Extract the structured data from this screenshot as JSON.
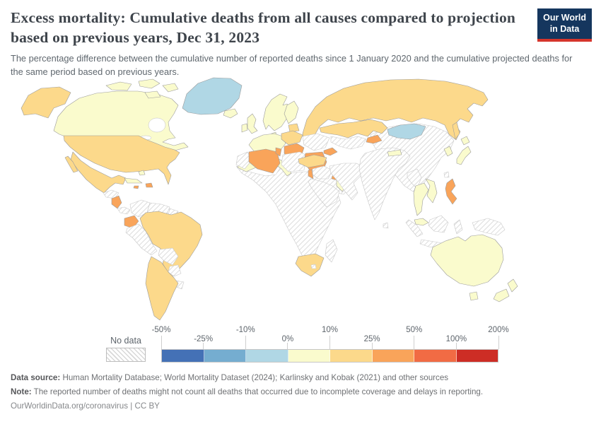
{
  "header": {
    "title": "Excess mortality: Cumulative deaths from all causes compared to projection based on previous years, Dec 31, 2023",
    "subtitle": "The percentage difference between the cumulative number of reported deaths since 1 January 2020 and the cumulative projected deaths for the same period based on previous years.",
    "logo": {
      "line1": "Our World",
      "line2": "in Data",
      "bg_color": "#15365e",
      "accent_color": "#d6352c"
    }
  },
  "chart_data": {
    "type": "choropleth_map",
    "title": "Excess mortality: Cumulative deaths from all causes compared to projection based on previous years",
    "date": "Dec 31, 2023",
    "unit": "%",
    "map_style": {
      "border": "#9c9c9c",
      "no_data_border": "#c9c9c9",
      "water_fill": "#ffffff"
    },
    "legend": {
      "no_data_label": "No data",
      "tick_labels": [
        "-50%",
        "-25%",
        "-10%",
        "0%",
        "10%",
        "25%",
        "50%",
        "100%",
        "200%"
      ],
      "bins": [
        {
          "label": "-50% to -25%",
          "color": "#4471b6"
        },
        {
          "label": "-25% to -10%",
          "color": "#75add0"
        },
        {
          "label": "-10% to 0%",
          "color": "#b0d7e5"
        },
        {
          "label": "0% to 10%",
          "color": "#fafbcd"
        },
        {
          "label": "10% to 25%",
          "color": "#fcd98b"
        },
        {
          "label": "25% to 50%",
          "color": "#f9a45a"
        },
        {
          "label": "50% to 100%",
          "color": "#f16b44"
        },
        {
          "label": "100% to 200%",
          "color": "#cd2d25"
        }
      ]
    },
    "regions": [
      {
        "id": "alaska",
        "name": "Alaska (United States)",
        "bin": 4
      },
      {
        "id": "canada",
        "name": "Canada",
        "bin": 3
      },
      {
        "id": "arctic-islands",
        "name": "Canadian Arctic islands",
        "bin": 3
      },
      {
        "id": "greenland",
        "name": "Greenland",
        "bin": 2
      },
      {
        "id": "usa",
        "name": "United States",
        "bin": 4
      },
      {
        "id": "mexico",
        "name": "Mexico",
        "bin": 4
      },
      {
        "id": "baja",
        "name": "Baja California (Mexico)",
        "bin": 4
      },
      {
        "id": "bahamas",
        "name": "Bahamas",
        "bin": 3
      },
      {
        "id": "cuba",
        "name": "Cuba",
        "bin": 3
      },
      {
        "id": "hispaniola",
        "name": "Dominican Republic",
        "bin": 5
      },
      {
        "id": "jamaica",
        "name": "Jamaica",
        "bin": 5
      },
      {
        "id": "guatemala-honduras",
        "name": "Guatemala / Honduras",
        "bin": "no-data"
      },
      {
        "id": "nicaragua-costarica",
        "name": "Nicaragua / Costa Rica",
        "bin": 5
      },
      {
        "id": "panama",
        "name": "Panama",
        "bin": "no-data"
      },
      {
        "id": "colombia",
        "name": "Colombia",
        "bin": "no-data"
      },
      {
        "id": "venezuela",
        "name": "Venezuela",
        "bin": "no-data"
      },
      {
        "id": "guyanas",
        "name": "Guyana / Suriname",
        "bin": "no-data"
      },
      {
        "id": "french-guiana",
        "name": "French Guiana",
        "bin": 3
      },
      {
        "id": "ecuador",
        "name": "Ecuador",
        "bin": 5
      },
      {
        "id": "peru",
        "name": "Peru",
        "bin": "no-data"
      },
      {
        "id": "brazil",
        "name": "Brazil",
        "bin": 4
      },
      {
        "id": "bolivia",
        "name": "Bolivia",
        "bin": "no-data"
      },
      {
        "id": "paraguay",
        "name": "Paraguay",
        "bin": "no-data"
      },
      {
        "id": "uruguay",
        "name": "Uruguay",
        "bin": "no-data"
      },
      {
        "id": "argentina-chile",
        "name": "Argentina / Chile",
        "bin": 4
      },
      {
        "id": "iceland",
        "name": "Iceland",
        "bin": 3
      },
      {
        "id": "ireland",
        "name": "Ireland",
        "bin": 3
      },
      {
        "id": "uk",
        "name": "United Kingdom",
        "bin": 3
      },
      {
        "id": "norway-sweden",
        "name": "Norway / Sweden",
        "bin": 3
      },
      {
        "id": "finland",
        "name": "Finland",
        "bin": 3
      },
      {
        "id": "denmark",
        "name": "Denmark",
        "bin": 3
      },
      {
        "id": "baltics",
        "name": "Baltic states",
        "bin": 4
      },
      {
        "id": "west-europe",
        "name": "France / Germany / Central Europe",
        "bin": 3
      },
      {
        "id": "iberia",
        "name": "Spain / Portugal",
        "bin": 3
      },
      {
        "id": "italy",
        "name": "Italy",
        "bin": 3
      },
      {
        "id": "eastern-europe",
        "name": "Poland / Eastern Europe",
        "bin": 4
      },
      {
        "id": "balkans",
        "name": "Balkans / Romania",
        "bin": 5
      },
      {
        "id": "greece",
        "name": "Greece",
        "bin": 5
      },
      {
        "id": "ukraine-belarus",
        "name": "Ukraine / Belarus",
        "bin": "no-data"
      },
      {
        "id": "russia",
        "name": "Russia",
        "bin": 4
      },
      {
        "id": "sakhalin",
        "name": "Sakhalin (Russia)",
        "bin": 4
      },
      {
        "id": "kazakhstan",
        "name": "Kazakhstan",
        "bin": 4
      },
      {
        "id": "central-asia",
        "name": "Uzbekistan / Turkmenistan",
        "bin": "no-data"
      },
      {
        "id": "kyrgyz-tajik",
        "name": "Kyrgyzstan / Tajikistan",
        "bin": 5
      },
      {
        "id": "caucasus",
        "name": "Caucasus",
        "bin": 5
      },
      {
        "id": "turkey",
        "name": "Turkey",
        "bin": 4
      },
      {
        "id": "syria-iraq",
        "name": "Syria / Iraq",
        "bin": "no-data"
      },
      {
        "id": "israel",
        "name": "Israel / Lebanon",
        "bin": 5
      },
      {
        "id": "iran-afghan-pak",
        "name": "Iran / Afghanistan / Pakistan",
        "bin": "no-data"
      },
      {
        "id": "arabia",
        "name": "Saudi Arabia / Yemen",
        "bin": "no-data"
      },
      {
        "id": "oman",
        "name": "Oman",
        "bin": 3
      },
      {
        "id": "uae-qatar",
        "name": "UAE / Qatar",
        "bin": 5
      },
      {
        "id": "india",
        "name": "India",
        "bin": "no-data"
      },
      {
        "id": "nepal",
        "name": "Nepal",
        "bin": 3
      },
      {
        "id": "sri-lanka",
        "name": "Sri Lanka",
        "bin": "no-data"
      },
      {
        "id": "china",
        "name": "China",
        "bin": "no-data"
      },
      {
        "id": "mongolia",
        "name": "Mongolia",
        "bin": 2
      },
      {
        "id": "korea",
        "name": "South Korea",
        "bin": 3
      },
      {
        "id": "japan",
        "name": "Japan",
        "bin": 3
      },
      {
        "id": "taiwan",
        "name": "Taiwan",
        "bin": "no-data"
      },
      {
        "id": "myanmar",
        "name": "Myanmar",
        "bin": "no-data"
      },
      {
        "id": "thailand",
        "name": "Thailand",
        "bin": 3
      },
      {
        "id": "vietnam",
        "name": "Vietnam / Laos",
        "bin": 3
      },
      {
        "id": "malaysia",
        "name": "Malaysia",
        "bin": 3
      },
      {
        "id": "indonesia-sumatra",
        "name": "Indonesia (Sumatra)",
        "bin": "no-data"
      },
      {
        "id": "indonesia-java",
        "name": "Indonesia (Java)",
        "bin": "no-data"
      },
      {
        "id": "indonesia-borneo",
        "name": "Borneo",
        "bin": "no-data"
      },
      {
        "id": "indonesia-sulawesi",
        "name": "Sulawesi",
        "bin": "no-data"
      },
      {
        "id": "philippines",
        "name": "Philippines",
        "bin": 5
      },
      {
        "id": "new-guinea",
        "name": "Papua New Guinea",
        "bin": "no-data"
      },
      {
        "id": "australia",
        "name": "Australia",
        "bin": 3
      },
      {
        "id": "tasmania",
        "name": "Tasmania (Australia)",
        "bin": 3
      },
      {
        "id": "new-zealand-north",
        "name": "New Zealand (North Island)",
        "bin": 3
      },
      {
        "id": "new-zealand-south",
        "name": "New Zealand (South Island)",
        "bin": 3
      },
      {
        "id": "morocco",
        "name": "Morocco",
        "bin": "no-data"
      },
      {
        "id": "algeria",
        "name": "Algeria",
        "bin": 5
      },
      {
        "id": "tunisia",
        "name": "Tunisia",
        "bin": 5
      },
      {
        "id": "libya",
        "name": "Libya",
        "bin": "no-data"
      },
      {
        "id": "egypt",
        "name": "Egypt",
        "bin": 5
      },
      {
        "id": "africa-subsaharan",
        "name": "Sub-Saharan Africa",
        "bin": "no-data"
      },
      {
        "id": "south-africa",
        "name": "South Africa",
        "bin": 4
      },
      {
        "id": "lesotho",
        "name": "Lesotho",
        "bin": "no-data"
      },
      {
        "id": "madagascar",
        "name": "Madagascar",
        "bin": "no-data"
      }
    ]
  },
  "footer": {
    "data_source_label": "Data source:",
    "data_source_text": "Human Mortality Database; World Mortality Dataset (2024); Karlinsky and Kobak (2021) and other sources",
    "note_label": "Note:",
    "note_text": "The reported number of deaths might not count all deaths that occurred due to incomplete coverage and delays in reporting.",
    "license_line": "OurWorldinData.org/coronavirus | CC BY"
  }
}
